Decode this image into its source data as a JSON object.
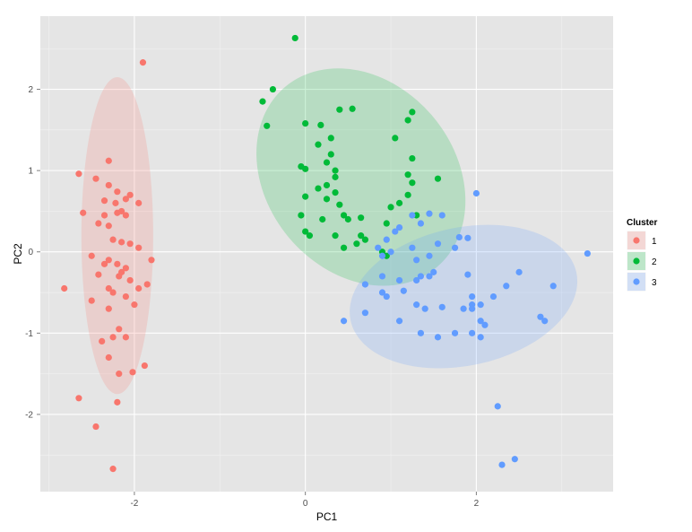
{
  "chart_data": {
    "type": "scatter",
    "title": "",
    "xlabel": "PC1",
    "ylabel": "PC2",
    "xlim": [
      -3.1,
      3.6
    ],
    "ylim": [
      -2.95,
      2.9
    ],
    "x_ticks": [
      -2,
      0,
      2
    ],
    "y_ticks": [
      -2,
      -1,
      0,
      1,
      2
    ],
    "grid": true,
    "legend": {
      "title": "Cluster",
      "placement": "right"
    },
    "series": [
      {
        "name": "1",
        "color": "#F8766D",
        "ellipse": {
          "cx": -2.2,
          "cy": 0.2,
          "rx": 0.42,
          "ry": 1.95,
          "angle_deg": 0
        },
        "points": [
          [
            -1.9,
            2.33
          ],
          [
            -2.3,
            1.12
          ],
          [
            -2.65,
            0.96
          ],
          [
            -2.45,
            0.9
          ],
          [
            -2.3,
            0.82
          ],
          [
            -2.2,
            0.74
          ],
          [
            -2.05,
            0.7
          ],
          [
            -2.1,
            0.65
          ],
          [
            -2.35,
            0.63
          ],
          [
            -2.22,
            0.6
          ],
          [
            -1.95,
            0.6
          ],
          [
            -2.6,
            0.48
          ],
          [
            -2.15,
            0.5
          ],
          [
            -2.2,
            0.48
          ],
          [
            -2.35,
            0.45
          ],
          [
            -2.1,
            0.45
          ],
          [
            -2.42,
            0.35
          ],
          [
            -2.3,
            0.32
          ],
          [
            -2.25,
            0.15
          ],
          [
            -2.15,
            0.12
          ],
          [
            -2.05,
            0.1
          ],
          [
            -1.95,
            0.05
          ],
          [
            -2.5,
            -0.05
          ],
          [
            -2.3,
            -0.1
          ],
          [
            -2.2,
            -0.15
          ],
          [
            -2.35,
            -0.15
          ],
          [
            -2.1,
            -0.2
          ],
          [
            -2.15,
            -0.25
          ],
          [
            -1.8,
            -0.1
          ],
          [
            -2.18,
            -0.3
          ],
          [
            -2.42,
            -0.28
          ],
          [
            -2.05,
            -0.35
          ],
          [
            -1.85,
            -0.4
          ],
          [
            -1.95,
            -0.45
          ],
          [
            -2.3,
            -0.45
          ],
          [
            -2.25,
            -0.5
          ],
          [
            -2.82,
            -0.45
          ],
          [
            -2.5,
            -0.6
          ],
          [
            -2.1,
            -0.55
          ],
          [
            -2.0,
            -0.65
          ],
          [
            -2.3,
            -0.7
          ],
          [
            -2.18,
            -0.95
          ],
          [
            -2.25,
            -1.05
          ],
          [
            -2.38,
            -1.1
          ],
          [
            -2.1,
            -1.05
          ],
          [
            -2.3,
            -1.3
          ],
          [
            -2.18,
            -1.5
          ],
          [
            -2.02,
            -1.48
          ],
          [
            -1.88,
            -1.4
          ],
          [
            -2.65,
            -1.8
          ],
          [
            -2.2,
            -1.85
          ],
          [
            -2.45,
            -2.15
          ],
          [
            -2.25,
            -2.67
          ]
        ]
      },
      {
        "name": "2",
        "color": "#00BA38",
        "ellipse": {
          "cx": 0.65,
          "cy": 0.92,
          "rx": 1.1,
          "ry": 1.45,
          "angle_deg": -40
        },
        "points": [
          [
            -0.12,
            2.63
          ],
          [
            -0.38,
            2.0
          ],
          [
            -0.5,
            1.85
          ],
          [
            -0.45,
            1.55
          ],
          [
            0.0,
            1.58
          ],
          [
            0.18,
            1.56
          ],
          [
            0.4,
            1.75
          ],
          [
            0.55,
            1.76
          ],
          [
            1.25,
            1.72
          ],
          [
            1.2,
            1.62
          ],
          [
            0.3,
            1.4
          ],
          [
            0.15,
            1.32
          ],
          [
            0.3,
            1.2
          ],
          [
            1.05,
            1.4
          ],
          [
            0.25,
            1.1
          ],
          [
            1.25,
            1.15
          ],
          [
            0.35,
            1.0
          ],
          [
            -0.05,
            1.05
          ],
          [
            0.0,
            1.02
          ],
          [
            0.35,
            0.92
          ],
          [
            1.2,
            0.95
          ],
          [
            0.25,
            0.82
          ],
          [
            0.15,
            0.78
          ],
          [
            0.35,
            0.73
          ],
          [
            1.25,
            0.85
          ],
          [
            1.55,
            0.9
          ],
          [
            0.0,
            0.68
          ],
          [
            0.25,
            0.65
          ],
          [
            0.4,
            0.58
          ],
          [
            1.1,
            0.6
          ],
          [
            1.2,
            0.7
          ],
          [
            1.0,
            0.55
          ],
          [
            -0.05,
            0.45
          ],
          [
            0.45,
            0.45
          ],
          [
            0.5,
            0.4
          ],
          [
            0.65,
            0.42
          ],
          [
            1.3,
            0.45
          ],
          [
            0.2,
            0.4
          ],
          [
            0.95,
            0.35
          ],
          [
            0.0,
            0.25
          ],
          [
            0.05,
            0.2
          ],
          [
            0.35,
            0.2
          ],
          [
            0.65,
            0.2
          ],
          [
            0.7,
            0.15
          ],
          [
            0.6,
            0.1
          ],
          [
            0.45,
            0.05
          ],
          [
            0.9,
            0.0
          ],
          [
            0.95,
            -0.05
          ]
        ]
      },
      {
        "name": "3",
        "color": "#619CFF",
        "ellipse": {
          "cx": 1.85,
          "cy": -0.55,
          "rx": 1.35,
          "ry": 0.85,
          "angle_deg": -12
        },
        "points": [
          [
            2.0,
            0.72
          ],
          [
            3.3,
            -0.02
          ],
          [
            1.45,
            0.47
          ],
          [
            1.6,
            0.45
          ],
          [
            1.25,
            0.45
          ],
          [
            1.35,
            0.35
          ],
          [
            1.1,
            0.3
          ],
          [
            1.05,
            0.25
          ],
          [
            0.85,
            0.05
          ],
          [
            1.8,
            0.18
          ],
          [
            1.9,
            0.17
          ],
          [
            1.25,
            0.05
          ],
          [
            1.55,
            0.1
          ],
          [
            1.75,
            0.05
          ],
          [
            0.9,
            -0.05
          ],
          [
            1.0,
            0.0
          ],
          [
            1.3,
            -0.1
          ],
          [
            1.45,
            -0.05
          ],
          [
            0.95,
            0.15
          ],
          [
            1.5,
            -0.25
          ],
          [
            1.45,
            -0.3
          ],
          [
            1.35,
            -0.3
          ],
          [
            2.5,
            -0.25
          ],
          [
            1.9,
            -0.28
          ],
          [
            0.9,
            -0.3
          ],
          [
            1.1,
            -0.35
          ],
          [
            1.3,
            -0.35
          ],
          [
            2.35,
            -0.42
          ],
          [
            2.9,
            -0.42
          ],
          [
            0.7,
            -0.4
          ],
          [
            0.9,
            -0.5
          ],
          [
            0.95,
            -0.55
          ],
          [
            1.15,
            -0.48
          ],
          [
            1.95,
            -0.55
          ],
          [
            2.2,
            -0.55
          ],
          [
            1.95,
            -0.65
          ],
          [
            2.05,
            -0.65
          ],
          [
            0.7,
            -0.75
          ],
          [
            1.3,
            -0.65
          ],
          [
            1.4,
            -0.7
          ],
          [
            1.6,
            -0.68
          ],
          [
            1.85,
            -0.7
          ],
          [
            1.95,
            -0.7
          ],
          [
            2.75,
            -0.8
          ],
          [
            2.8,
            -0.85
          ],
          [
            0.45,
            -0.85
          ],
          [
            1.1,
            -0.85
          ],
          [
            2.05,
            -0.85
          ],
          [
            2.1,
            -0.9
          ],
          [
            1.35,
            -1.0
          ],
          [
            1.55,
            -1.05
          ],
          [
            1.75,
            -1.0
          ],
          [
            1.95,
            -1.0
          ],
          [
            2.05,
            -1.05
          ],
          [
            2.25,
            -1.9
          ],
          [
            2.45,
            -2.55
          ],
          [
            2.3,
            -2.62
          ]
        ]
      }
    ]
  }
}
